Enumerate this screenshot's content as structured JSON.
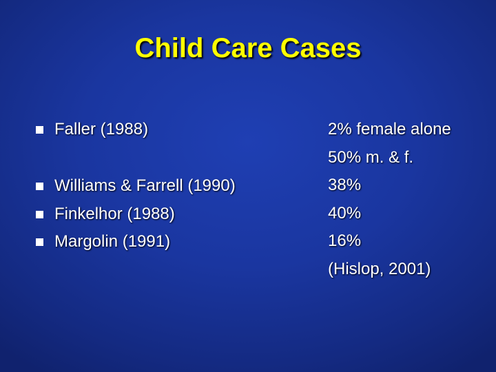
{
  "slide": {
    "title": "Child Care Cases",
    "studies": [
      {
        "label": "Faller (1988)"
      },
      {
        "label": "Williams & Farrell (1990)"
      },
      {
        "label": "Finkelhor (1988)"
      },
      {
        "label": "Margolin (1991)"
      }
    ],
    "results": [
      "2% female alone",
      "50% m. & f.",
      "38%",
      "40%",
      "16%",
      "(Hislop, 2001)"
    ],
    "colors": {
      "background": "#1a36a0",
      "title": "#ffff00",
      "text": "#ffffff"
    }
  }
}
